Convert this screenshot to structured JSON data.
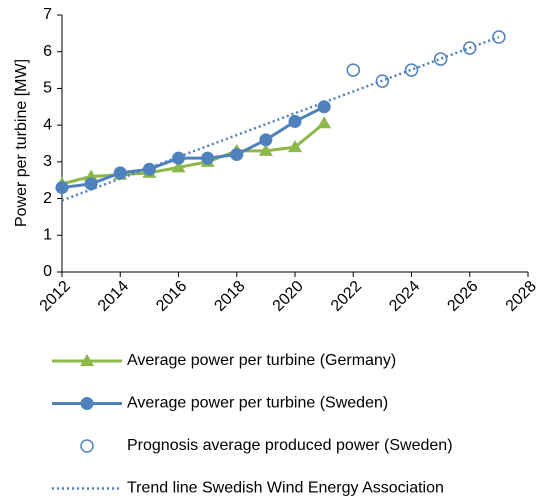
{
  "chart_data": {
    "type": "line",
    "ylabel": "Power per turbine [MW]",
    "xlim": [
      2012,
      2028
    ],
    "xticks": [
      2012,
      2014,
      2016,
      2018,
      2020,
      2022,
      2024,
      2026,
      2028
    ],
    "ylim": [
      0,
      7
    ],
    "yticks": [
      0,
      1,
      2,
      3,
      4,
      5,
      6,
      7
    ],
    "grid": false,
    "legend": "bottom",
    "series": [
      {
        "name": "Average power per turbine (Germany)",
        "color": "#8DB84A",
        "marker": "triangle",
        "line": "solid",
        "x": [
          2012,
          2013,
          2014,
          2015,
          2016,
          2017,
          2018,
          2019,
          2020,
          2021
        ],
        "values": [
          2.4,
          2.6,
          2.65,
          2.7,
          2.85,
          3.0,
          3.3,
          3.3,
          3.4,
          4.05
        ]
      },
      {
        "name": "Average power per turbine (Sweden)",
        "color": "#4F81BD",
        "marker": "circle",
        "line": "solid",
        "x": [
          2012,
          2013,
          2014,
          2015,
          2016,
          2017,
          2018,
          2019,
          2020,
          2021
        ],
        "values": [
          2.3,
          2.4,
          2.7,
          2.8,
          3.1,
          3.1,
          3.2,
          3.6,
          4.1,
          4.5
        ]
      },
      {
        "name": "Prognosis average produced power (Sweden)",
        "color": "#4F81BD",
        "marker": "open-circle",
        "line": "none",
        "x": [
          2022,
          2023,
          2024,
          2025,
          2026,
          2027
        ],
        "values": [
          5.5,
          5.2,
          5.5,
          5.8,
          6.1,
          6.4
        ]
      },
      {
        "name": "Trend line Swedish Wind Energy Association",
        "color": "#4F81BD",
        "marker": "none",
        "line": "dotted",
        "x": [
          2012,
          2027
        ],
        "values": [
          1.95,
          6.4
        ]
      }
    ]
  }
}
